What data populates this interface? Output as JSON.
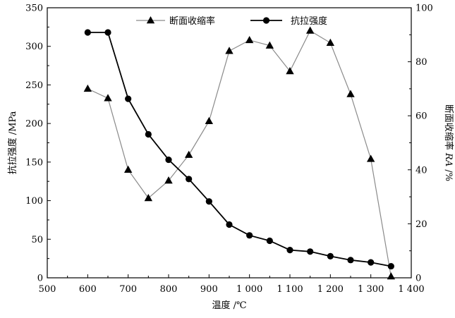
{
  "chart_data": {
    "type": "line",
    "title": "",
    "xlabel": "温度 /℃",
    "ylabel_left": "抗拉强度 /MPa",
    "ylabel_right_prefix": "断面收缩率 ",
    "ylabel_right_italic": "RA",
    "ylabel_right_suffix": " /%",
    "xlim": [
      500,
      1400
    ],
    "ylim_left": [
      0,
      350
    ],
    "ylim_right": [
      0,
      100
    ],
    "x_ticks": [
      500,
      600,
      700,
      800,
      900,
      1000,
      1100,
      1200,
      1300,
      1400
    ],
    "x_tick_labels": [
      "500",
      "600",
      "700",
      "800",
      "900",
      "1 000",
      "1 100",
      "1 200",
      "1 300",
      "1 400"
    ],
    "y_left_ticks": [
      0,
      50,
      100,
      150,
      200,
      250,
      300,
      350
    ],
    "y_left_tick_labels": [
      "0",
      "50",
      "100",
      "150",
      "200",
      "250",
      "300",
      "350"
    ],
    "y_right_ticks": [
      0,
      20,
      40,
      60,
      80,
      100
    ],
    "y_right_tick_labels": [
      "0",
      "20",
      "40",
      "60",
      "80",
      "100"
    ],
    "grid": false,
    "legend_position": "top",
    "series": [
      {
        "name": "断面收缩率",
        "axis": "right",
        "marker": "triangle",
        "color": "#8a8a8a",
        "x": [
          600,
          650,
          700,
          750,
          800,
          850,
          900,
          950,
          1000,
          1050,
          1100,
          1150,
          1200,
          1250,
          1300,
          1350
        ],
        "y": [
          70,
          66.5,
          40,
          29.5,
          36,
          45.5,
          58,
          84,
          88,
          86,
          76.5,
          91.5,
          87,
          68,
          44,
          0.5
        ]
      },
      {
        "name": "抗拉强度",
        "axis": "left",
        "marker": "circle",
        "color": "#000000",
        "x": [
          600,
          650,
          700,
          750,
          800,
          850,
          900,
          950,
          1000,
          1050,
          1100,
          1150,
          1200,
          1250,
          1300,
          1350
        ],
        "y": [
          318,
          318,
          232,
          186,
          153,
          128,
          99,
          69,
          55,
          48,
          36,
          34,
          28,
          23,
          20,
          15
        ]
      }
    ]
  }
}
